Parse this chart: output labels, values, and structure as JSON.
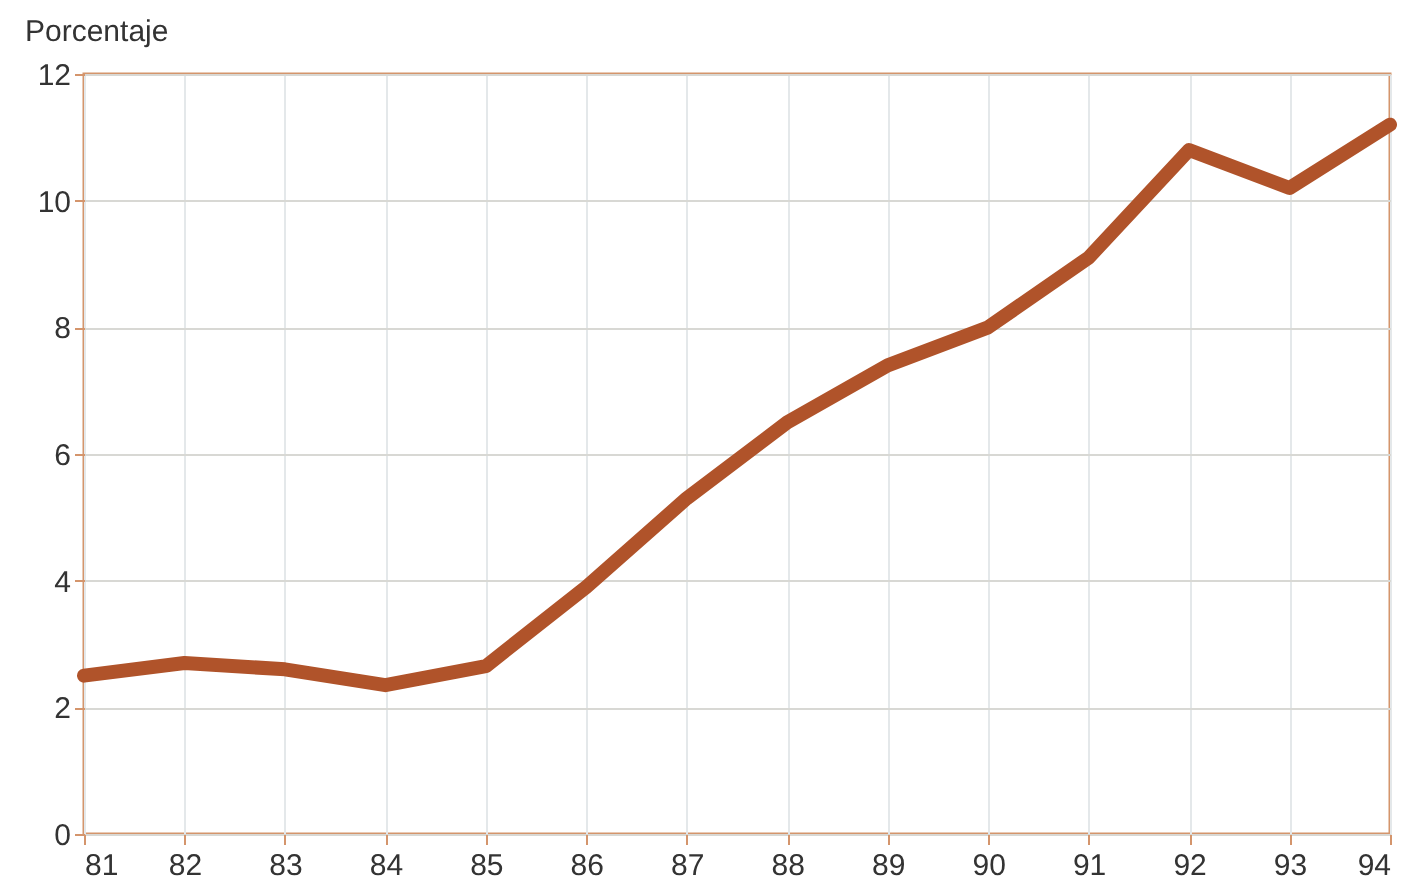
{
  "chart_data": {
    "type": "line",
    "ylabel": "Porcentaje",
    "x": [
      81,
      82,
      83,
      84,
      85,
      86,
      87,
      88,
      89,
      90,
      91,
      92,
      93,
      94
    ],
    "series": [
      {
        "color": "#b0532a",
        "values": [
          2.5,
          2.7,
          2.6,
          2.35,
          2.65,
          3.9,
          5.3,
          6.5,
          7.4,
          8.0,
          9.1,
          10.8,
          10.2,
          11.2
        ]
      }
    ],
    "xlim": [
      81,
      94
    ],
    "xticks": [
      81,
      82,
      83,
      84,
      85,
      86,
      87,
      88,
      89,
      90,
      91,
      92,
      93,
      94
    ],
    "ylim": [
      0,
      12
    ],
    "yticks": [
      0,
      2,
      4,
      6,
      8,
      10,
      12
    ],
    "grid": true,
    "marker": "none",
    "line_style": "solid"
  }
}
